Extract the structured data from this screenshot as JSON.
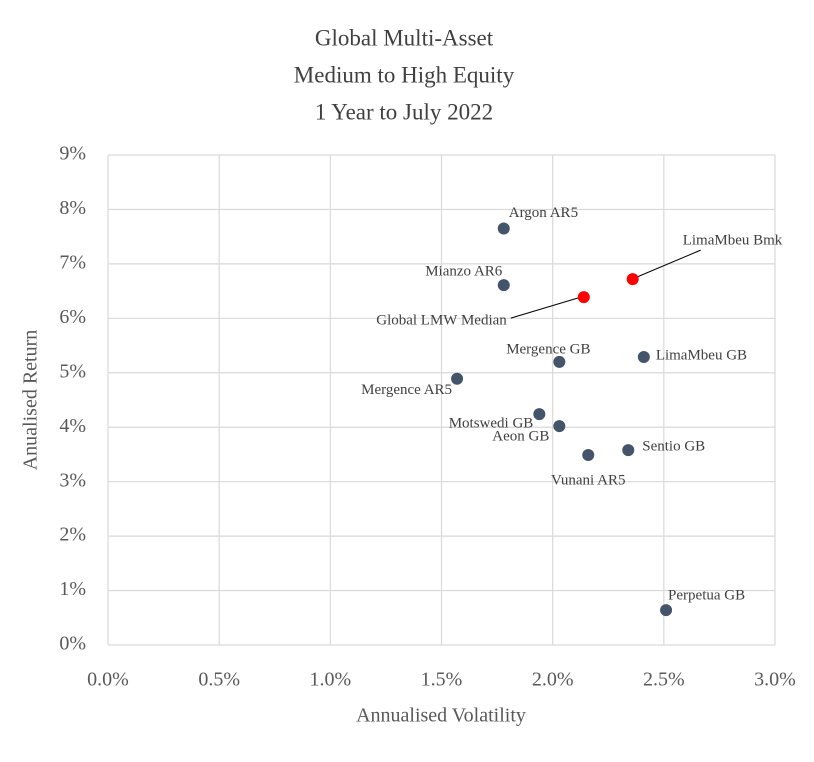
{
  "chart_data": {
    "type": "scatter",
    "title": [
      "Global Multi-Asset",
      "Medium to High Equity",
      "1 Year to July 2022"
    ],
    "x_label": "Annualised Volatility",
    "y_label": "Anualised Return",
    "labels": [
      "Argon AR5",
      "Mianzo AR6",
      "Global LMW Median",
      "LimaMbeu Bmk",
      "Mergence GB",
      "LimaMbeu GB",
      "Mergence AR5",
      "Motswedi GB",
      "Aeon GB",
      "Sentio GB",
      "Vunani AR5",
      "Perpetua GB"
    ],
    "x": [
      1.78,
      1.78,
      2.14,
      2.36,
      2.03,
      2.41,
      1.57,
      1.94,
      2.03,
      2.34,
      2.16,
      2.51
    ],
    "y": [
      7.65,
      6.61,
      6.39,
      6.72,
      5.2,
      5.29,
      4.89,
      4.24,
      4.02,
      3.58,
      3.49,
      0.64
    ],
    "colors": [
      "#44546a",
      "#44546a",
      "#ff0000",
      "#ff0000",
      "#44546a",
      "#44546a",
      "#44546a",
      "#44546a",
      "#44546a",
      "#44546a",
      "#44546a",
      "#44546a"
    ],
    "xlim": [
      0,
      3
    ],
    "ylim": [
      0,
      9
    ],
    "xticks": [
      {
        "value": 0,
        "label": "0.0%"
      },
      {
        "value": 0.5,
        "label": "0.5%"
      },
      {
        "value": 1,
        "label": "1.0%"
      },
      {
        "value": 1.5,
        "label": "1.5%"
      },
      {
        "value": 2,
        "label": "2.0%"
      },
      {
        "value": 2.5,
        "label": "2.5%"
      },
      {
        "value": 3,
        "label": "3.0%"
      }
    ],
    "yticks": [
      {
        "value": 0,
        "label": "0%"
      },
      {
        "value": 1,
        "label": "1%"
      },
      {
        "value": 2,
        "label": "2%"
      },
      {
        "value": 3,
        "label": "3%"
      },
      {
        "value": 4,
        "label": "4%"
      },
      {
        "value": 5,
        "label": "5%"
      },
      {
        "value": 6,
        "label": "6%"
      },
      {
        "value": 7,
        "label": "7%"
      },
      {
        "value": 8,
        "label": "8%"
      },
      {
        "value": 9,
        "label": "9%"
      }
    ],
    "grid": true
  }
}
